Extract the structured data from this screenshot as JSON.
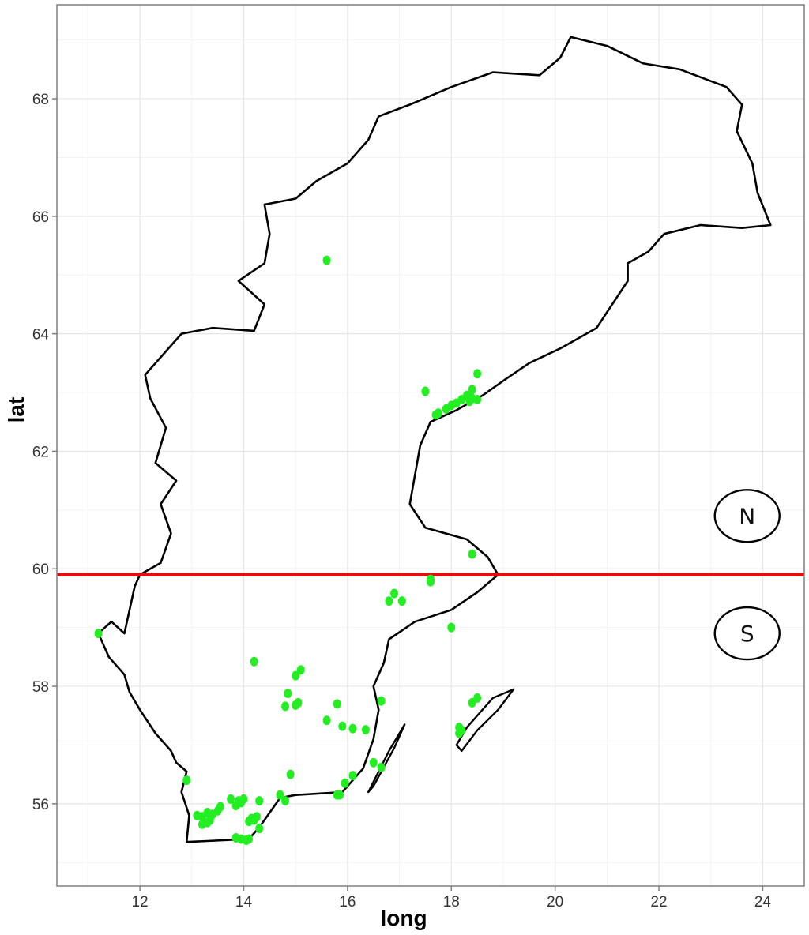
{
  "chart_data": {
    "type": "scatter",
    "title": "",
    "xlabel": "long",
    "ylabel": "lat",
    "xlim": [
      10.4,
      24.8
    ],
    "ylim": [
      54.6,
      69.6
    ],
    "x_ticks": [
      12,
      14,
      16,
      18,
      20,
      22,
      24
    ],
    "y_ticks": [
      56,
      58,
      60,
      62,
      64,
      66,
      68
    ],
    "grid": true,
    "divider": {
      "lat": 59.9,
      "color": "#e01010"
    },
    "zones": [
      {
        "label": "N",
        "long": 23.7,
        "lat": 60.9
      },
      {
        "label": "S",
        "long": 23.7,
        "lat": 58.9
      }
    ],
    "point_color": "#22ee22",
    "series": [
      {
        "points": [
          [
            15.6,
            65.25
          ],
          [
            17.5,
            63.02
          ],
          [
            18.5,
            63.32
          ],
          [
            18.4,
            63.05
          ],
          [
            18.3,
            62.95
          ],
          [
            18.2,
            62.88
          ],
          [
            18.1,
            62.82
          ],
          [
            18.4,
            62.9
          ],
          [
            18.0,
            62.78
          ],
          [
            17.9,
            62.72
          ],
          [
            17.7,
            62.62
          ],
          [
            17.75,
            62.65
          ],
          [
            18.5,
            62.88
          ],
          [
            18.35,
            62.85
          ],
          [
            18.4,
            60.25
          ],
          [
            17.6,
            59.82
          ],
          [
            16.9,
            59.58
          ],
          [
            16.8,
            59.45
          ],
          [
            17.05,
            59.45
          ],
          [
            18.0,
            59.0
          ],
          [
            11.2,
            58.9
          ],
          [
            14.2,
            58.42
          ],
          [
            15.1,
            58.28
          ],
          [
            15.0,
            58.18
          ],
          [
            14.85,
            57.88
          ],
          [
            15.05,
            57.72
          ],
          [
            14.8,
            57.66
          ],
          [
            15.0,
            57.68
          ],
          [
            15.8,
            57.7
          ],
          [
            16.65,
            57.75
          ],
          [
            18.4,
            57.72
          ],
          [
            18.5,
            57.8
          ],
          [
            15.6,
            57.42
          ],
          [
            15.9,
            57.32
          ],
          [
            16.1,
            57.28
          ],
          [
            16.35,
            57.26
          ],
          [
            18.15,
            57.3
          ],
          [
            18.2,
            57.25
          ],
          [
            18.15,
            57.2
          ],
          [
            16.5,
            56.7
          ],
          [
            16.65,
            56.62
          ],
          [
            16.1,
            56.48
          ],
          [
            15.95,
            56.35
          ],
          [
            14.9,
            56.5
          ],
          [
            12.9,
            56.4
          ],
          [
            14.7,
            56.15
          ],
          [
            14.8,
            56.05
          ],
          [
            14.3,
            56.05
          ],
          [
            15.8,
            56.15
          ],
          [
            15.85,
            56.15
          ],
          [
            13.75,
            56.08
          ],
          [
            13.9,
            56.05
          ],
          [
            14.0,
            56.08
          ],
          [
            13.95,
            56.02
          ],
          [
            13.85,
            55.97
          ],
          [
            13.55,
            55.95
          ],
          [
            13.5,
            55.88
          ],
          [
            13.1,
            55.8
          ],
          [
            13.2,
            55.78
          ],
          [
            13.3,
            55.85
          ],
          [
            13.4,
            55.82
          ],
          [
            13.35,
            55.72
          ],
          [
            13.2,
            55.65
          ],
          [
            13.3,
            55.68
          ],
          [
            14.15,
            55.75
          ],
          [
            14.2,
            55.72
          ],
          [
            14.25,
            55.78
          ],
          [
            14.1,
            55.7
          ],
          [
            14.3,
            55.58
          ],
          [
            13.85,
            55.42
          ],
          [
            13.95,
            55.4
          ],
          [
            14.05,
            55.38
          ],
          [
            14.1,
            55.4
          ],
          [
            17.6,
            59.78
          ]
        ]
      }
    ],
    "outline": [
      [
        14.1,
        55.4
      ],
      [
        12.9,
        55.35
      ],
      [
        12.95,
        55.8
      ],
      [
        12.8,
        56.2
      ],
      [
        12.9,
        56.55
      ],
      [
        12.7,
        56.7
      ],
      [
        12.6,
        56.9
      ],
      [
        12.3,
        57.2
      ],
      [
        12.0,
        57.6
      ],
      [
        11.8,
        57.9
      ],
      [
        11.7,
        58.2
      ],
      [
        11.4,
        58.5
      ],
      [
        11.2,
        58.9
      ],
      [
        11.45,
        59.1
      ],
      [
        11.7,
        58.9
      ],
      [
        11.8,
        59.3
      ],
      [
        11.9,
        59.7
      ],
      [
        12.0,
        59.9
      ],
      [
        12.4,
        60.1
      ],
      [
        12.6,
        60.6
      ],
      [
        12.4,
        61.1
      ],
      [
        12.7,
        61.5
      ],
      [
        12.3,
        61.8
      ],
      [
        12.5,
        62.4
      ],
      [
        12.2,
        62.9
      ],
      [
        12.1,
        63.3
      ],
      [
        12.4,
        63.6
      ],
      [
        12.8,
        64.0
      ],
      [
        13.4,
        64.1
      ],
      [
        14.2,
        64.05
      ],
      [
        14.4,
        64.5
      ],
      [
        13.9,
        64.9
      ],
      [
        14.4,
        65.2
      ],
      [
        14.5,
        65.7
      ],
      [
        14.4,
        66.2
      ],
      [
        15.0,
        66.3
      ],
      [
        15.4,
        66.6
      ],
      [
        16.0,
        66.9
      ],
      [
        16.4,
        67.3
      ],
      [
        16.6,
        67.7
      ],
      [
        17.2,
        67.9
      ],
      [
        18.0,
        68.2
      ],
      [
        18.8,
        68.45
      ],
      [
        19.7,
        68.4
      ],
      [
        20.1,
        68.7
      ],
      [
        20.3,
        69.05
      ],
      [
        21.0,
        68.9
      ],
      [
        21.7,
        68.6
      ],
      [
        22.4,
        68.5
      ],
      [
        23.3,
        68.2
      ],
      [
        23.6,
        67.9
      ],
      [
        23.5,
        67.45
      ],
      [
        23.8,
        66.9
      ],
      [
        23.9,
        66.4
      ],
      [
        24.15,
        65.85
      ],
      [
        23.6,
        65.8
      ],
      [
        22.8,
        65.85
      ],
      [
        22.1,
        65.7
      ],
      [
        21.8,
        65.4
      ],
      [
        21.4,
        65.2
      ],
      [
        21.4,
        64.9
      ],
      [
        21.1,
        64.5
      ],
      [
        20.8,
        64.1
      ],
      [
        20.1,
        63.75
      ],
      [
        19.5,
        63.5
      ],
      [
        19.0,
        63.2
      ],
      [
        18.6,
        62.95
      ],
      [
        18.1,
        62.7
      ],
      [
        17.6,
        62.5
      ],
      [
        17.4,
        62.1
      ],
      [
        17.3,
        61.6
      ],
      [
        17.2,
        61.1
      ],
      [
        17.5,
        60.7
      ],
      [
        18.3,
        60.5
      ],
      [
        18.7,
        60.2
      ],
      [
        18.9,
        59.9
      ],
      [
        18.5,
        59.6
      ],
      [
        18.0,
        59.3
      ],
      [
        17.3,
        59.1
      ],
      [
        16.8,
        58.8
      ],
      [
        16.7,
        58.4
      ],
      [
        16.5,
        58.0
      ],
      [
        16.6,
        57.6
      ],
      [
        16.5,
        57.1
      ],
      [
        16.3,
        56.6
      ],
      [
        15.9,
        56.2
      ],
      [
        15.0,
        56.15
      ],
      [
        14.7,
        56.1
      ],
      [
        14.3,
        55.6
      ],
      [
        14.1,
        55.4
      ]
    ],
    "islands": [
      [
        [
          18.1,
          57.0
        ],
        [
          18.3,
          57.3
        ],
        [
          18.8,
          57.8
        ],
        [
          19.2,
          57.95
        ],
        [
          18.9,
          57.6
        ],
        [
          18.5,
          57.25
        ],
        [
          18.2,
          56.9
        ],
        [
          18.1,
          57.0
        ]
      ],
      [
        [
          16.4,
          56.2
        ],
        [
          16.8,
          56.9
        ],
        [
          17.1,
          57.35
        ],
        [
          16.9,
          56.95
        ],
        [
          16.5,
          56.3
        ],
        [
          16.4,
          56.2
        ]
      ]
    ]
  }
}
